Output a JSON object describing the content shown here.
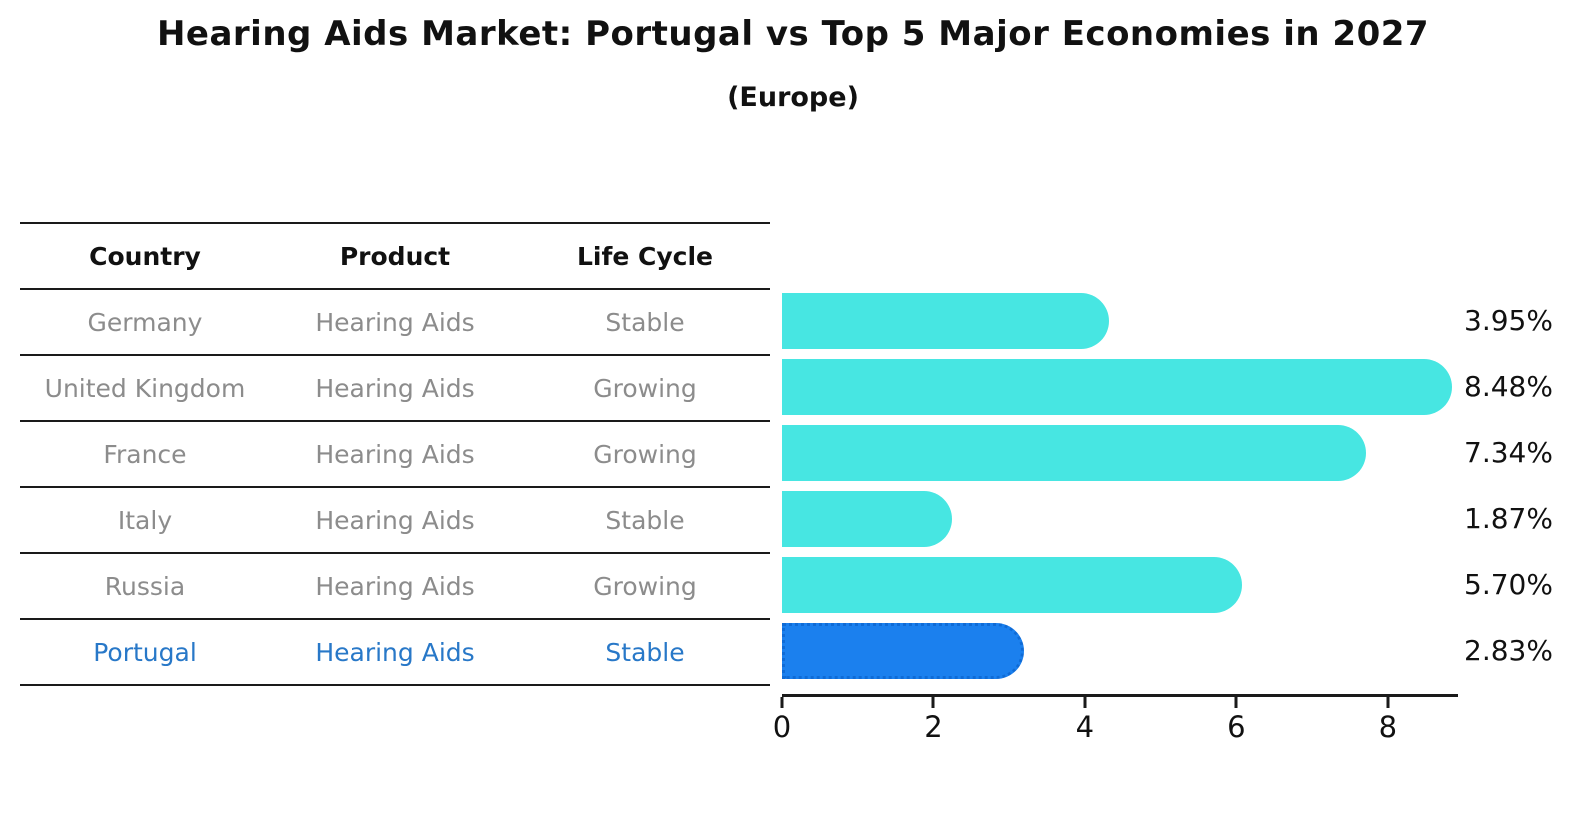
{
  "title": "Hearing Aids Market: Portugal vs Top 5 Major Economies in 2027",
  "subtitle": "(Europe)",
  "table": {
    "headers": {
      "country": "Country",
      "product": "Product",
      "life_cycle": "Life Cycle"
    },
    "rows": [
      {
        "country": "Germany",
        "product": "Hearing Aids",
        "life_cycle": "Stable",
        "highlight": false
      },
      {
        "country": "United Kingdom",
        "product": "Hearing Aids",
        "life_cycle": "Growing",
        "highlight": false
      },
      {
        "country": "France",
        "product": "Hearing Aids",
        "life_cycle": "Growing",
        "highlight": false
      },
      {
        "country": "Italy",
        "product": "Hearing Aids",
        "life_cycle": "Stable",
        "highlight": false
      },
      {
        "country": "Russia",
        "product": "Hearing Aids",
        "life_cycle": "Growing",
        "highlight": false
      },
      {
        "country": "Portugal",
        "product": "Hearing Aids",
        "life_cycle": "Stable",
        "highlight": true
      }
    ]
  },
  "chart_data": {
    "type": "bar",
    "orientation": "horizontal",
    "title": "Hearing Aids Market: Portugal vs Top 5 Major Economies in 2027",
    "subtitle": "(Europe)",
    "categories": [
      "Germany",
      "United Kingdom",
      "France",
      "Italy",
      "Russia",
      "Portugal"
    ],
    "values": [
      3.95,
      8.48,
      7.34,
      1.87,
      5.7,
      2.83
    ],
    "labels": [
      "3.95%",
      "8.48%",
      "7.34%",
      "1.87%",
      "5.70%",
      "2.83%"
    ],
    "unit": "%",
    "xticks": [
      0,
      2,
      4,
      6,
      8
    ],
    "xlim": [
      0,
      8.9
    ],
    "grid": false,
    "legend": "none",
    "bar_color": "#47e6e2",
    "highlight_color": "#1b80ee",
    "highlight_index": 5
  },
  "colors": {
    "background": "#ffffff",
    "text_primary": "#111111",
    "text_muted": "#8c8c8c",
    "text_highlight": "#2878c8",
    "line": "#1a1a1a",
    "bar": "#47e6e2",
    "bar_highlight": "#1b80ee"
  }
}
